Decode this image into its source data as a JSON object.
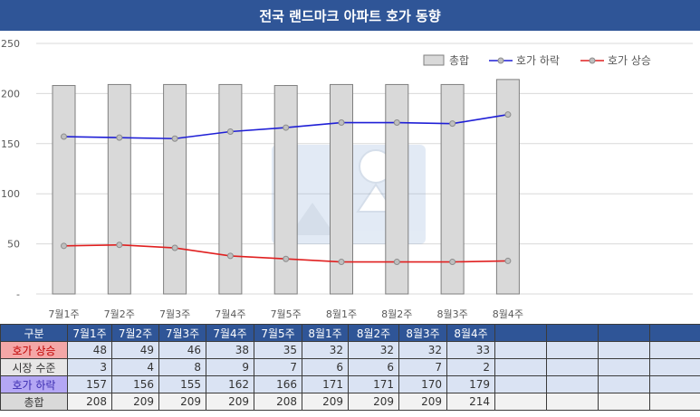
{
  "chart_data": {
    "type": "bar",
    "title": "전국 랜드마크 아파트 호가 동향",
    "categories": [
      "7월1주",
      "7월2주",
      "7월3주",
      "7월4주",
      "7월5주",
      "8월1주",
      "8월2주",
      "8월3주",
      "8월4주"
    ],
    "series": [
      {
        "name": "총합",
        "type": "bar",
        "values": [
          208,
          209,
          209,
          209,
          208,
          209,
          209,
          209,
          214
        ],
        "color": "#d9d9d9"
      },
      {
        "name": "호가 하락",
        "type": "line",
        "values": [
          157,
          156,
          155,
          162,
          166,
          171,
          171,
          170,
          179
        ],
        "color": "#1f1fd6"
      },
      {
        "name": "호가 상승",
        "type": "line",
        "values": [
          48,
          49,
          46,
          38,
          35,
          32,
          32,
          32,
          33
        ],
        "color": "#e02020"
      }
    ],
    "ylim": [
      0,
      250
    ],
    "yticks": [
      "-",
      "50",
      "100",
      "150",
      "200",
      "250"
    ],
    "grid": true,
    "legend_position": "top-right"
  },
  "table": {
    "header": [
      "구분",
      "7월1주",
      "7월2주",
      "7월3주",
      "7월4주",
      "7월5주",
      "8월1주",
      "8월2주",
      "8월3주",
      "8월4주"
    ],
    "rows": [
      {
        "label": "호가 상승",
        "values": [
          "48",
          "49",
          "46",
          "38",
          "35",
          "32",
          "32",
          "32",
          "33"
        ]
      },
      {
        "label": "시장 수준",
        "values": [
          "3",
          "4",
          "8",
          "9",
          "7",
          "6",
          "6",
          "7",
          "2"
        ]
      },
      {
        "label": "호가 하락",
        "values": [
          "157",
          "156",
          "155",
          "162",
          "166",
          "171",
          "171",
          "170",
          "179"
        ]
      },
      {
        "label": "총합",
        "values": [
          "208",
          "209",
          "209",
          "209",
          "208",
          "209",
          "209",
          "209",
          "214"
        ]
      }
    ]
  },
  "watermark": {
    "text": "금매트 사랑"
  }
}
